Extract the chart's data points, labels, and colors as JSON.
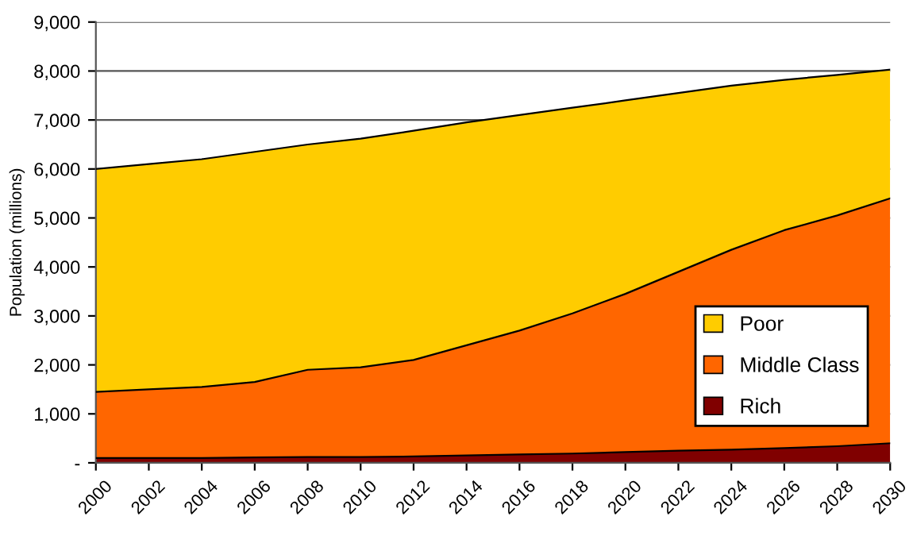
{
  "chart_data": {
    "type": "area",
    "stacked": true,
    "ylabel": "Population (millions)",
    "x": [
      2000,
      2002,
      2004,
      2006,
      2008,
      2010,
      2012,
      2014,
      2016,
      2018,
      2020,
      2022,
      2024,
      2026,
      2028,
      2030
    ],
    "series": [
      {
        "name": "Rich",
        "color": "#800000",
        "values": [
          100,
          100,
          100,
          110,
          120,
          120,
          130,
          150,
          170,
          190,
          220,
          250,
          270,
          300,
          340,
          400
        ]
      },
      {
        "name": "Middle Class",
        "color": "#ff6600",
        "values": [
          1350,
          1400,
          1450,
          1540,
          1780,
          1830,
          1970,
          2250,
          2530,
          2860,
          3230,
          3650,
          4080,
          4450,
          4710,
          5000
        ]
      },
      {
        "name": "Poor",
        "color": "#ffcc00",
        "values": [
          4550,
          4600,
          4650,
          4700,
          4600,
          4670,
          4680,
          4550,
          4400,
          4200,
          3950,
          3650,
          3350,
          3070,
          2870,
          2630
        ]
      }
    ],
    "xlim": [
      2000,
      2030
    ],
    "xticks": [
      2000,
      2002,
      2004,
      2006,
      2008,
      2010,
      2012,
      2014,
      2016,
      2018,
      2020,
      2022,
      2024,
      2026,
      2028,
      2030
    ],
    "ylim": [
      0,
      9000
    ],
    "yticks": [
      {
        "value": 0,
        "label": "-"
      },
      {
        "value": 1000,
        "label": "1,000"
      },
      {
        "value": 2000,
        "label": "2,000"
      },
      {
        "value": 3000,
        "label": "3,000"
      },
      {
        "value": 4000,
        "label": "4,000"
      },
      {
        "value": 5000,
        "label": "5,000"
      },
      {
        "value": 6000,
        "label": "6,000"
      },
      {
        "value": 7000,
        "label": "7,000"
      },
      {
        "value": 8000,
        "label": "8,000"
      },
      {
        "value": 9000,
        "label": "9,000"
      }
    ],
    "grid": "y",
    "legend": "bottom right"
  }
}
